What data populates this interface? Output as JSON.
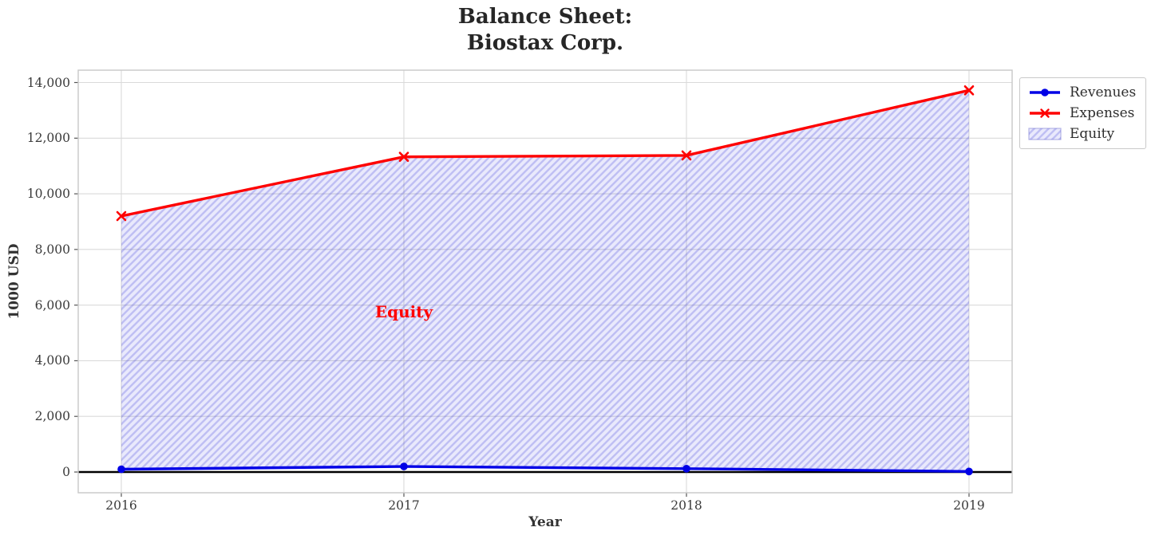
{
  "chart_data": {
    "type": "line",
    "title": "Balance Sheet:\nBiostax Corp.",
    "xlabel": "Year",
    "ylabel": "1000 USD",
    "x": [
      2016,
      2017,
      2018,
      2019
    ],
    "x_tick_labels": [
      "2016",
      "2017",
      "2018",
      "2019"
    ],
    "y_ticks": [
      0,
      2000,
      4000,
      6000,
      8000,
      10000,
      12000,
      14000
    ],
    "y_tick_labels": [
      "0",
      "2,000",
      "4,000",
      "6,000",
      "8,000",
      "10,000",
      "12,000",
      "14,000"
    ],
    "ylim": [
      -750,
      14460
    ],
    "grid": true,
    "series": [
      {
        "name": "Revenues",
        "color": "#0000e6",
        "marker": "circle",
        "values": [
          100,
          200,
          120,
          20
        ]
      },
      {
        "name": "Expenses",
        "color": "#fe0000",
        "marker": "x",
        "values": [
          9200,
          11330,
          11380,
          13720
        ]
      }
    ],
    "fill_between": {
      "name": "Equity",
      "between": [
        "Revenues",
        "Expenses"
      ],
      "fill_color": "rgba(0,0,221,0.085)",
      "hatch_color": "rgba(40,40,210,0.22)",
      "hatch": "//",
      "edge_color": "#b4b4e6"
    },
    "zero_line": {
      "y": 0,
      "color": "#000000"
    },
    "annotation": {
      "text": "Equity",
      "x": 2017,
      "y": 5750,
      "color": "#ff0000"
    },
    "legend": {
      "position": "outside-top-right",
      "entries": [
        "Revenues",
        "Expenses",
        "Equity"
      ]
    }
  }
}
